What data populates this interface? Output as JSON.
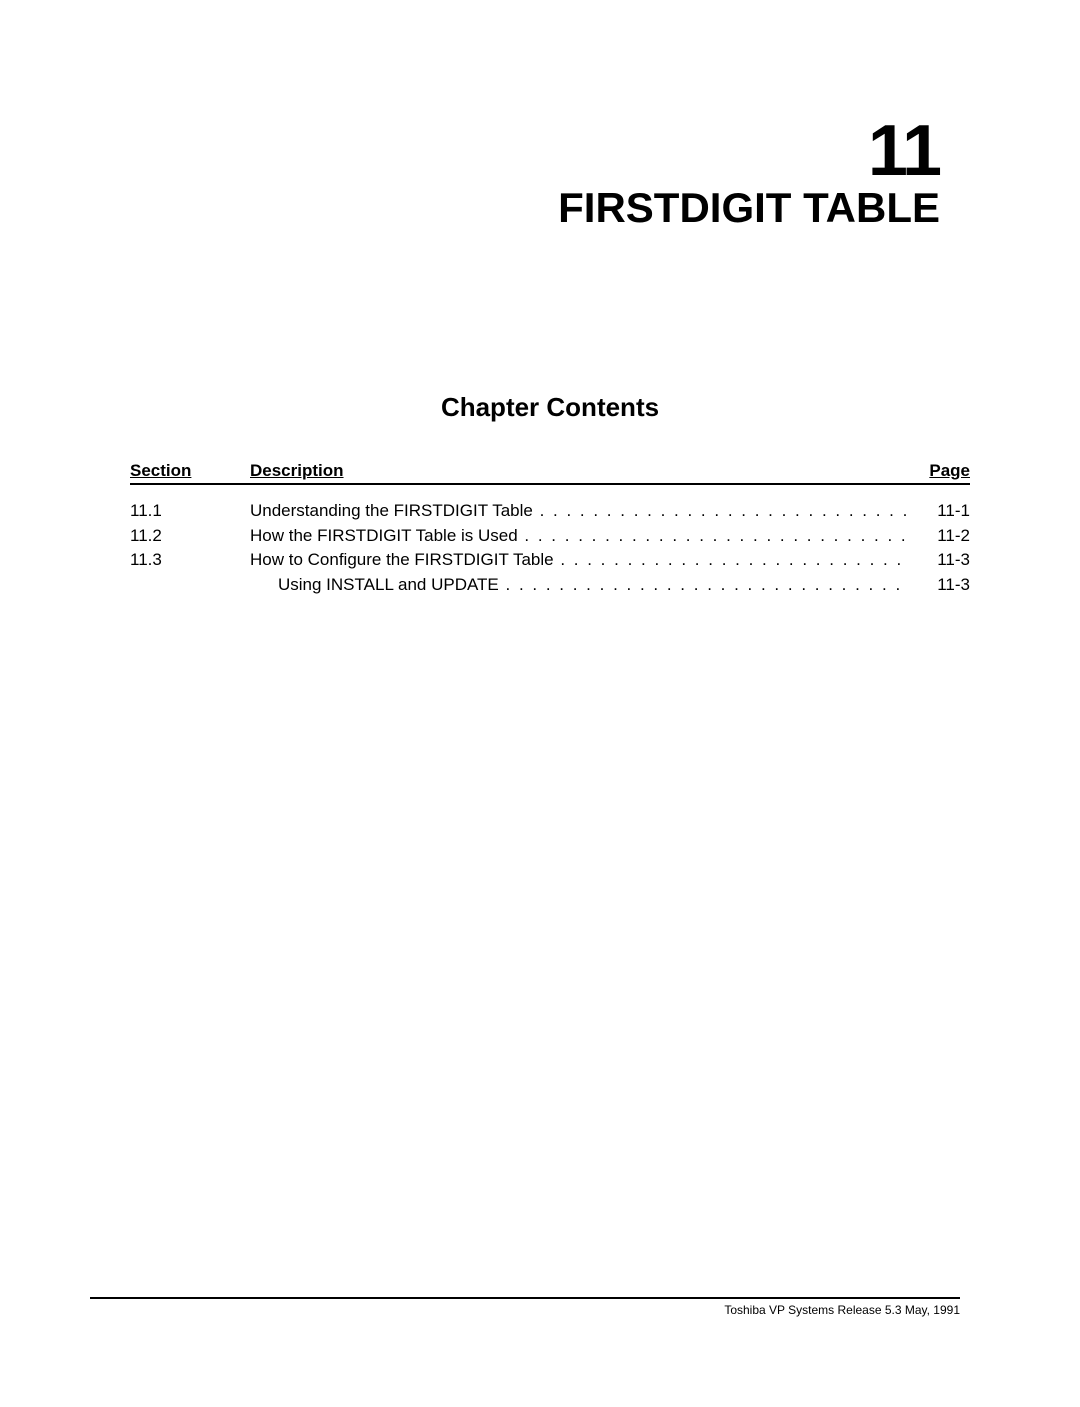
{
  "chapter": {
    "number": "11",
    "title": "FIRSTDIGIT TABLE"
  },
  "contents_heading": "Chapter Contents",
  "toc_headers": {
    "section": "Section",
    "description": "Description",
    "page": "Page"
  },
  "toc": [
    {
      "section": "11.1",
      "description": "Understanding the FIRSTDIGIT Table",
      "page": "11-1",
      "indent": false
    },
    {
      "section": "11.2",
      "description": "How the FIRSTDIGIT Table is Used",
      "page": "11-2",
      "indent": false
    },
    {
      "section": "11.3",
      "description": "How to Configure the FIRSTDIGIT Table",
      "page": "11-3",
      "indent": false
    },
    {
      "section": "",
      "description": "Using INSTALL and UPDATE",
      "page": "11-3",
      "indent": true
    }
  ],
  "footer": {
    "text": "Toshiba VP Systems    Release 5.3    May, 1991"
  }
}
